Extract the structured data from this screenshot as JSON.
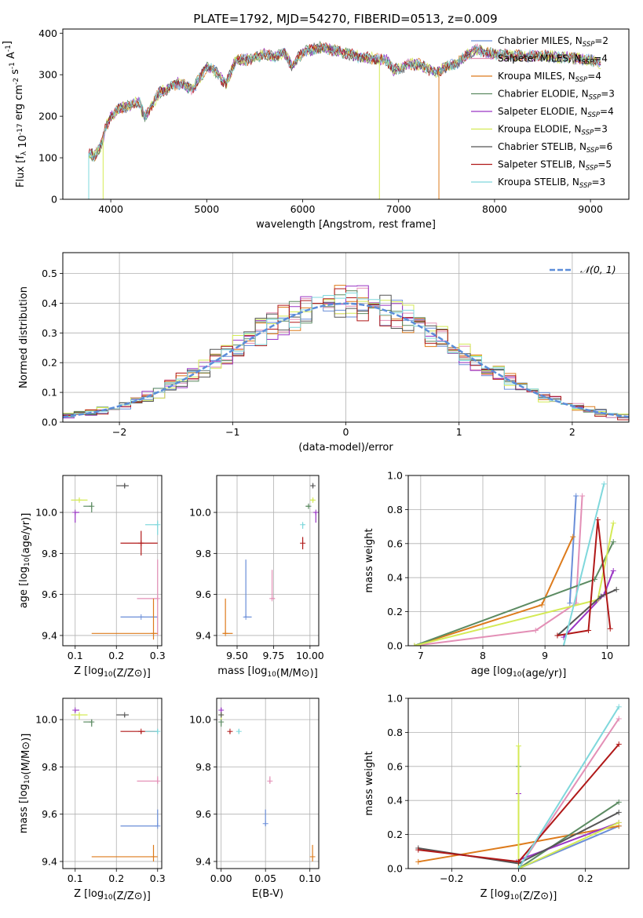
{
  "figure_title": "PLATE=1792, MJD=54270, FIBERID=0513, z=0.009",
  "palette": {
    "Chabrier MILES": "#6a8ed8",
    "Salpeter MILES": "#e38fb6",
    "Kroupa MILES": "#dd7b1c",
    "Chabrier ELODIE": "#5c8b62",
    "Salpeter ELODIE": "#9a35c4",
    "Kroupa ELODIE": "#d4ea55",
    "Chabrier STELIB": "#555555",
    "Salpeter STELIB": "#b01818",
    "Kroupa STELIB": "#7fd8dc",
    "gauss": "#5b8dd9"
  },
  "chart_data": [
    {
      "id": "spectrum",
      "type": "line",
      "xlabel": "wavelength [Angstrom, rest frame]",
      "ylabel": "Flux [f_λ 10^-17 erg cm^-2 s^-1 A^-1]",
      "xlim": [
        3500,
        9400
      ],
      "ylim": [
        0,
        410
      ],
      "xticks": [
        4000,
        5000,
        6000,
        7000,
        8000,
        9000
      ],
      "yticks": [
        0,
        100,
        200,
        300,
        400
      ],
      "legend": {
        "placement": "top-right",
        "entries": [
          {
            "name": "Chabrier MILES",
            "nssp": "2"
          },
          {
            "name": "Salpeter MILES",
            "nssp": "4"
          },
          {
            "name": "Kroupa MILES",
            "nssp": "4"
          },
          {
            "name": "Chabrier ELODIE",
            "nssp": "3"
          },
          {
            "name": "Salpeter ELODIE",
            "nssp": "4"
          },
          {
            "name": "Kroupa ELODIE",
            "nssp": "3"
          },
          {
            "name": "Chabrier STELIB",
            "nssp": "6"
          },
          {
            "name": "Salpeter STELIB",
            "nssp": "5"
          },
          {
            "name": "Kroupa STELIB",
            "nssp": "3"
          }
        ]
      },
      "continuum": {
        "x": [
          3770,
          3830,
          3900,
          3950,
          4000,
          4100,
          4200,
          4300,
          4350,
          4500,
          4700,
          4860,
          5000,
          5100,
          5200,
          5300,
          5400,
          5500,
          5600,
          5700,
          5800,
          5890,
          6000,
          6200,
          6400,
          6563,
          6700,
          6880,
          6950,
          7100,
          7200,
          7300,
          7400,
          7500,
          7600,
          7700,
          7800,
          8000,
          8200,
          8500,
          8800,
          9000,
          9100
        ],
        "y": [
          110,
          105,
          130,
          175,
          200,
          220,
          225,
          235,
          195,
          255,
          280,
          265,
          320,
          305,
          275,
          335,
          335,
          340,
          350,
          340,
          355,
          320,
          355,
          365,
          355,
          345,
          340,
          335,
          310,
          325,
          325,
          315,
          305,
          320,
          325,
          345,
          360,
          350,
          345,
          345,
          340,
          335,
          330
        ]
      },
      "drops": [
        {
          "x": 3770,
          "y": 0,
          "series": "Kroupa STELIB"
        },
        {
          "x": 3920,
          "y": 0,
          "series": "Kroupa ELODIE"
        },
        {
          "x": 6800,
          "y": 0,
          "series": "Kroupa ELODIE"
        },
        {
          "x": 7420,
          "y": 0,
          "series": "Kroupa MILES"
        }
      ]
    },
    {
      "id": "residuals",
      "type": "line",
      "xlabel": "(data-model)/error",
      "ylabel": "Normed distribution",
      "xlim": [
        -2.5,
        2.5
      ],
      "ylim": [
        0,
        0.57
      ],
      "xticks": [
        -2,
        -1,
        0,
        1,
        2
      ],
      "yticks": [
        0.0,
        0.1,
        0.2,
        0.3,
        0.4,
        0.5
      ],
      "grid": true,
      "legend": {
        "placement": "top-right",
        "entries": [
          {
            "name": "𝒩(0, 1)"
          }
        ]
      },
      "histogram_bin_width": 0.1
    },
    {
      "id": "age-vs-Z",
      "type": "scatter",
      "xlabel": "Z [log10(Z/Z⊙)]",
      "ylabel": "age [log10(age/yr)]",
      "xlim": [
        0.07,
        0.31
      ],
      "ylim": [
        9.35,
        10.18
      ],
      "xticks": [
        0.1,
        0.2,
        0.3
      ],
      "yticks": [
        9.4,
        9.6,
        9.8,
        10.0
      ],
      "grid": true,
      "points": [
        {
          "series": "Chabrier MILES",
          "x": 0.26,
          "y": 9.49,
          "xerr": [
            0.21,
            0.3
          ],
          "yerr": [
            9.49,
            9.49
          ]
        },
        {
          "series": "Salpeter MILES",
          "x": 0.3,
          "y": 9.58,
          "xerr": [
            0.25,
            0.3
          ],
          "yerr": [
            9.4,
            9.77
          ]
        },
        {
          "series": "Kroupa MILES",
          "x": 0.29,
          "y": 9.41,
          "xerr": [
            0.14,
            0.3
          ],
          "yerr": [
            9.38,
            9.58
          ]
        },
        {
          "series": "Chabrier ELODIE",
          "x": 0.14,
          "y": 10.03,
          "xerr": [
            0.12,
            0.14
          ],
          "yerr": [
            10.0,
            10.05
          ]
        },
        {
          "series": "Salpeter ELODIE",
          "x": 0.1,
          "y": 10.0,
          "xerr": [
            0.1,
            0.11
          ],
          "yerr": [
            9.95,
            10.0
          ]
        },
        {
          "series": "Kroupa ELODIE",
          "x": 0.11,
          "y": 10.06,
          "xerr": [
            0.09,
            0.13
          ],
          "yerr": [
            10.05,
            10.07
          ]
        },
        {
          "series": "Chabrier STELIB",
          "x": 0.22,
          "y": 10.13,
          "xerr": [
            0.2,
            0.23
          ],
          "yerr": [
            10.12,
            10.14
          ]
        },
        {
          "series": "Salpeter STELIB",
          "x": 0.26,
          "y": 9.85,
          "xerr": [
            0.21,
            0.3
          ],
          "yerr": [
            9.79,
            9.91
          ]
        },
        {
          "series": "Kroupa STELIB",
          "x": 0.3,
          "y": 9.94,
          "xerr": [
            0.27,
            0.3
          ],
          "yerr": [
            9.89,
            9.96
          ]
        }
      ]
    },
    {
      "id": "age-vs-mass",
      "type": "scatter",
      "xlabel": "mass [log10(M/M⊙)]",
      "ylabel": "",
      "xlim": [
        9.36,
        10.06
      ],
      "ylim": [
        9.35,
        10.18
      ],
      "xticks": [
        9.5,
        9.75,
        10.0
      ],
      "yticks": [
        9.4,
        9.6,
        9.8,
        10.0
      ],
      "grid": true,
      "points": [
        {
          "series": "Chabrier MILES",
          "x": 9.56,
          "y": 9.49,
          "xerr": [
            9.55,
            9.6
          ],
          "yerr": [
            9.49,
            9.77
          ]
        },
        {
          "series": "Salpeter MILES",
          "x": 9.74,
          "y": 9.58,
          "xerr": [
            9.73,
            9.76
          ],
          "yerr": [
            9.58,
            9.72
          ]
        },
        {
          "series": "Kroupa MILES",
          "x": 9.42,
          "y": 9.41,
          "xerr": [
            9.4,
            9.47
          ],
          "yerr": [
            9.41,
            9.58
          ]
        },
        {
          "series": "Chabrier ELODIE",
          "x": 9.99,
          "y": 10.03,
          "xerr": [
            9.97,
            10.0
          ],
          "yerr": [
            10.02,
            10.04
          ]
        },
        {
          "series": "Salpeter ELODIE",
          "x": 10.04,
          "y": 10.0,
          "xerr": [
            10.03,
            10.04
          ],
          "yerr": [
            9.95,
            10.0
          ]
        },
        {
          "series": "Kroupa ELODIE",
          "x": 10.02,
          "y": 10.06,
          "xerr": [
            10.0,
            10.03
          ],
          "yerr": [
            10.05,
            10.07
          ]
        },
        {
          "series": "Chabrier STELIB",
          "x": 10.02,
          "y": 10.13,
          "xerr": [
            10.01,
            10.02
          ],
          "yerr": [
            10.12,
            10.14
          ]
        },
        {
          "series": "Salpeter STELIB",
          "x": 9.95,
          "y": 9.85,
          "xerr": [
            9.95,
            9.95
          ],
          "yerr": [
            9.82,
            9.88
          ]
        },
        {
          "series": "Kroupa STELIB",
          "x": 9.95,
          "y": 9.94,
          "xerr": [
            9.95,
            9.96
          ],
          "yerr": [
            9.92,
            9.95
          ]
        }
      ]
    },
    {
      "id": "weight-vs-age",
      "type": "line",
      "xlabel": "age [log10(age/yr)]",
      "ylabel": "mass weight",
      "xlim": [
        6.8,
        10.35
      ],
      "ylim": [
        0,
        1.0
      ],
      "xticks": [
        7,
        8,
        9,
        10
      ],
      "yticks": [
        0.0,
        0.2,
        0.4,
        0.6,
        0.8,
        1.0
      ],
      "grid": true,
      "series": [
        {
          "name": "Chabrier MILES",
          "x": [
            9.5,
            9.4
          ],
          "y": [
            0.88,
            0.25
          ]
        },
        {
          "name": "Salpeter MILES",
          "x": [
            9.6,
            9.5,
            8.85,
            6.9
          ],
          "y": [
            0.88,
            0.25,
            0.09,
            0.0
          ]
        },
        {
          "name": "Kroupa MILES",
          "x": [
            9.45,
            8.95,
            6.9
          ],
          "y": [
            0.64,
            0.24,
            0.0
          ]
        },
        {
          "name": "Chabrier ELODIE",
          "x": [
            10.1,
            9.8,
            6.9
          ],
          "y": [
            0.61,
            0.39,
            0.0
          ]
        },
        {
          "name": "Salpeter ELODIE",
          "x": [
            10.1,
            9.95,
            9.3
          ],
          "y": [
            0.44,
            0.3,
            0.05
          ]
        },
        {
          "name": "Kroupa ELODIE",
          "x": [
            10.1,
            9.85,
            6.9
          ],
          "y": [
            0.72,
            0.27,
            0.0
          ]
        },
        {
          "name": "Chabrier STELIB",
          "x": [
            10.15,
            9.9,
            9.2
          ],
          "y": [
            0.33,
            0.29,
            0.06
          ]
        },
        {
          "name": "Salpeter STELIB",
          "x": [
            10.05,
            9.85,
            9.7,
            9.2
          ],
          "y": [
            0.1,
            0.74,
            0.09,
            0.06
          ]
        },
        {
          "name": "Kroupa STELIB",
          "x": [
            9.95,
            9.3
          ],
          "y": [
            0.95,
            0.0
          ]
        }
      ]
    },
    {
      "id": "mass-vs-Z",
      "type": "scatter",
      "xlabel": "Z [log10(Z/Z⊙)]",
      "ylabel": "mass [log10(M/M⊙)]",
      "xlim": [
        0.07,
        0.31
      ],
      "ylim": [
        9.37,
        10.09
      ],
      "xticks": [
        0.1,
        0.2,
        0.3
      ],
      "yticks": [
        9.4,
        9.6,
        9.8,
        10.0
      ],
      "grid": true,
      "points": [
        {
          "series": "Chabrier MILES",
          "x": 0.3,
          "y": 9.55,
          "xerr": [
            0.21,
            0.3
          ],
          "yerr": [
            9.55,
            9.62
          ]
        },
        {
          "series": "Salpeter MILES",
          "x": 0.3,
          "y": 9.74,
          "xerr": [
            0.25,
            0.3
          ],
          "yerr": [
            9.73,
            9.76
          ]
        },
        {
          "series": "Kroupa MILES",
          "x": 0.29,
          "y": 9.42,
          "xerr": [
            0.14,
            0.3
          ],
          "yerr": [
            9.4,
            9.47
          ]
        },
        {
          "series": "Chabrier ELODIE",
          "x": 0.14,
          "y": 9.99,
          "xerr": [
            0.12,
            0.14
          ],
          "yerr": [
            9.97,
            10.0
          ]
        },
        {
          "series": "Salpeter ELODIE",
          "x": 0.1,
          "y": 10.04,
          "xerr": [
            0.1,
            0.11
          ],
          "yerr": [
            10.03,
            10.04
          ]
        },
        {
          "series": "Kroupa ELODIE",
          "x": 0.11,
          "y": 10.02,
          "xerr": [
            0.09,
            0.13
          ],
          "yerr": [
            10.0,
            10.03
          ]
        },
        {
          "series": "Chabrier STELIB",
          "x": 0.22,
          "y": 10.02,
          "xerr": [
            0.2,
            0.23
          ],
          "yerr": [
            10.01,
            10.02
          ]
        },
        {
          "series": "Salpeter STELIB",
          "x": 0.26,
          "y": 9.95,
          "xerr": [
            0.21,
            0.3
          ],
          "yerr": [
            9.94,
            9.95
          ]
        },
        {
          "series": "Kroupa STELIB",
          "x": 0.3,
          "y": 9.95,
          "xerr": [
            0.27,
            0.3
          ],
          "yerr": [
            9.94,
            9.96
          ]
        }
      ]
    },
    {
      "id": "mass-vs-ebv",
      "type": "scatter",
      "xlabel": "E(B-V)",
      "ylabel": "",
      "xlim": [
        -0.005,
        0.11
      ],
      "ylim": [
        9.37,
        10.09
      ],
      "xticks": [
        0.0,
        0.05,
        0.1
      ],
      "yticks": [
        9.4,
        9.6,
        9.8,
        10.0
      ],
      "grid": true,
      "points": [
        {
          "series": "Chabrier MILES",
          "x": 0.05,
          "y": 9.56,
          "yerr": [
            9.55,
            9.62
          ]
        },
        {
          "series": "Salpeter MILES",
          "x": 0.055,
          "y": 9.74,
          "yerr": [
            9.73,
            9.76
          ]
        },
        {
          "series": "Kroupa MILES",
          "x": 0.103,
          "y": 9.42,
          "yerr": [
            9.4,
            9.47
          ]
        },
        {
          "series": "Chabrier ELODIE",
          "x": 0.0,
          "y": 9.99,
          "yerr": [
            9.97,
            10.0
          ]
        },
        {
          "series": "Salpeter ELODIE",
          "x": 0.0,
          "y": 10.04,
          "yerr": [
            10.03,
            10.05
          ]
        },
        {
          "series": "Kroupa ELODIE",
          "x": 0.0,
          "y": 10.02,
          "yerr": [
            10.0,
            10.03
          ]
        },
        {
          "series": "Chabrier STELIB",
          "x": 0.0,
          "y": 10.02,
          "yerr": [
            10.01,
            10.03
          ]
        },
        {
          "series": "Salpeter STELIB",
          "x": 0.01,
          "y": 9.95,
          "yerr": [
            9.94,
            9.95
          ]
        },
        {
          "series": "Kroupa STELIB",
          "x": 0.02,
          "y": 9.95,
          "yerr": [
            9.94,
            9.96
          ]
        }
      ]
    },
    {
      "id": "weight-vs-Z",
      "type": "line",
      "xlabel": "Z [log10(Z/Z⊙)]",
      "ylabel": "mass weight",
      "xlim": [
        -0.33,
        0.33
      ],
      "ylim": [
        0,
        1.0
      ],
      "xticks": [
        -0.2,
        0.0,
        0.2
      ],
      "yticks": [
        0.0,
        0.2,
        0.4,
        0.6,
        0.8,
        1.0
      ],
      "grid": true,
      "series": [
        {
          "name": "Chabrier MILES",
          "x": [
            0.0,
            0.3
          ],
          "y": [
            0.0,
            0.25
          ]
        },
        {
          "name": "Salpeter MILES",
          "x": [
            0.0,
            0.3
          ],
          "y": [
            0.0,
            0.88
          ]
        },
        {
          "name": "Kroupa MILES",
          "x": [
            -0.3,
            0.0,
            0.3
          ],
          "y": [
            0.04,
            0.14,
            0.25
          ]
        },
        {
          "name": "Chabrier ELODIE",
          "x": [
            0.0,
            0.0,
            0.3
          ],
          "y": [
            0.6,
            0.0,
            0.39
          ]
        },
        {
          "name": "Salpeter ELODIE",
          "x": [
            0.0,
            0.0,
            0.3
          ],
          "y": [
            0.44,
            0.05,
            0.27
          ]
        },
        {
          "name": "Kroupa ELODIE",
          "x": [
            0.0,
            0.0,
            0.3
          ],
          "y": [
            0.72,
            0.0,
            0.27
          ]
        },
        {
          "name": "Chabrier STELIB",
          "x": [
            -0.3,
            0.0,
            0.3
          ],
          "y": [
            0.12,
            0.03,
            0.33
          ]
        },
        {
          "name": "Salpeter STELIB",
          "x": [
            -0.3,
            0.0,
            0.3
          ],
          "y": [
            0.11,
            0.04,
            0.73
          ]
        },
        {
          "name": "Kroupa STELIB",
          "x": [
            0.0,
            0.3
          ],
          "y": [
            0.0,
            0.95
          ]
        }
      ]
    }
  ]
}
